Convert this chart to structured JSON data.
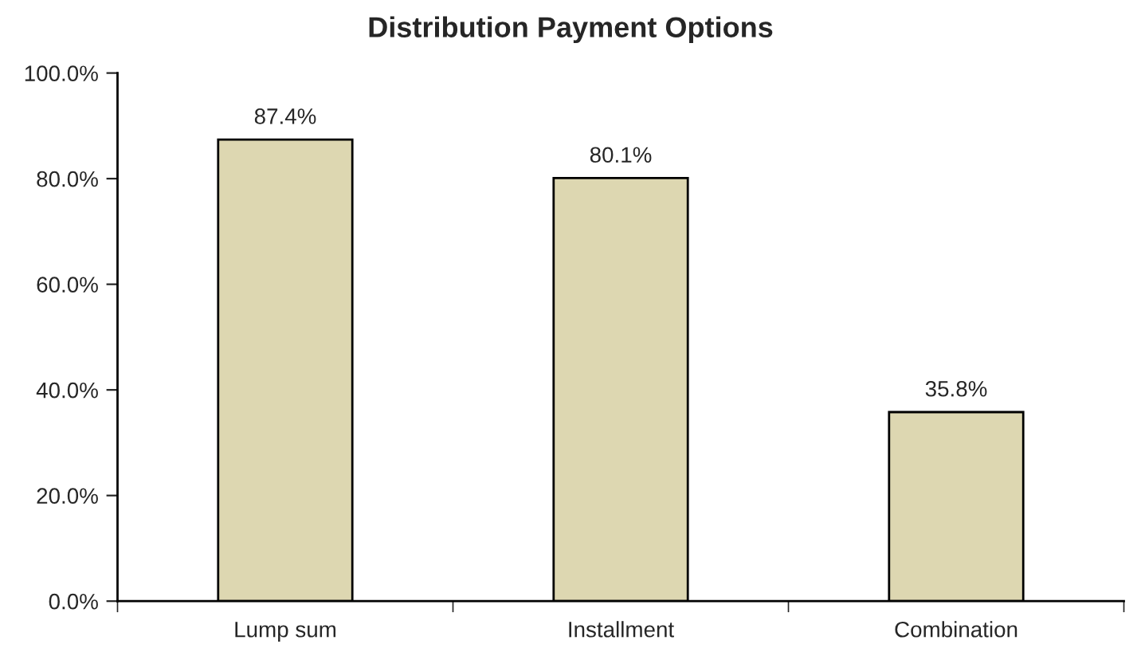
{
  "chart_data": {
    "type": "bar",
    "title": "Distribution Payment Options",
    "categories": [
      "Lump sum",
      "Installment",
      "Combination"
    ],
    "values": [
      87.4,
      80.1,
      35.8
    ],
    "color": "#ddd7b1",
    "value_labels": [
      "87.4%",
      "80.1%",
      "35.8%"
    ],
    "ylim": [
      0,
      100
    ],
    "yticks": [
      {
        "value": 0,
        "label": "0.0%"
      },
      {
        "value": 20,
        "label": "20.0%"
      },
      {
        "value": 40,
        "label": "40.0%"
      },
      {
        "value": 60,
        "label": "60.0%"
      },
      {
        "value": 80,
        "label": "80.0%"
      },
      {
        "value": 100,
        "label": "100.0%"
      }
    ],
    "grid": false,
    "legend": false
  }
}
